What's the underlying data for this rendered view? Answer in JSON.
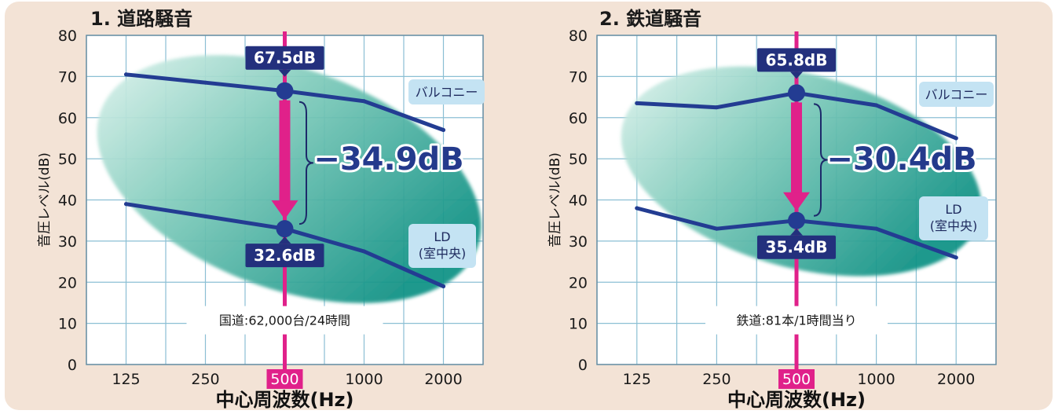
{
  "colors": {
    "panel_background": "#f3e3d6",
    "plot_background": "#ffffff",
    "grid": "#8bbfd4",
    "series_line": "#233c92",
    "marker_line": "#e0218a",
    "label_box": "#23307d",
    "ellipse_light": "#dff3ee",
    "ellipse_dark": "#13978a",
    "legend_box": "#c4e3f3"
  },
  "chart_data": [
    {
      "type": "line",
      "title": "1. 道路騒音",
      "xlabel": "中心周波数(Hz)",
      "ylabel": "音圧レベル(dB)",
      "categories": [
        "125",
        "250",
        "500",
        "1000",
        "2000"
      ],
      "highlight_category": "500",
      "ylim": [
        0,
        80
      ],
      "yticks": [
        "0",
        "10",
        "20",
        "30",
        "40",
        "50",
        "60",
        "70",
        "80"
      ],
      "grid": true,
      "series": [
        {
          "name": "バルコニー",
          "values": [
            70.5,
            68.5,
            66.5,
            64,
            57
          ]
        },
        {
          "name": "LD\n(室中央)",
          "values": [
            39,
            36,
            33,
            27.5,
            19
          ]
        }
      ],
      "annotations": {
        "upper_value": "67.5dB",
        "lower_value": "32.6dB",
        "difference": "−34.9dB",
        "note": "国道:62,000台/24時間"
      }
    },
    {
      "type": "line",
      "title": "2. 鉄道騒音",
      "xlabel": "中心周波数(Hz)",
      "ylabel": "音圧レベル(dB)",
      "categories": [
        "125",
        "250",
        "500",
        "1000",
        "2000"
      ],
      "highlight_category": "500",
      "ylim": [
        0,
        80
      ],
      "yticks": [
        "0",
        "10",
        "20",
        "30",
        "40",
        "50",
        "60",
        "70",
        "80"
      ],
      "grid": true,
      "series": [
        {
          "name": "バルコニー",
          "values": [
            63.5,
            62.5,
            66,
            63,
            55
          ]
        },
        {
          "name": "LD\n(室中央)",
          "values": [
            38,
            33,
            35,
            33,
            26
          ]
        }
      ],
      "annotations": {
        "upper_value": "65.8dB",
        "lower_value": "35.4dB",
        "difference": "−30.4dB",
        "note": "鉄道:81本/1時間当り"
      }
    }
  ]
}
